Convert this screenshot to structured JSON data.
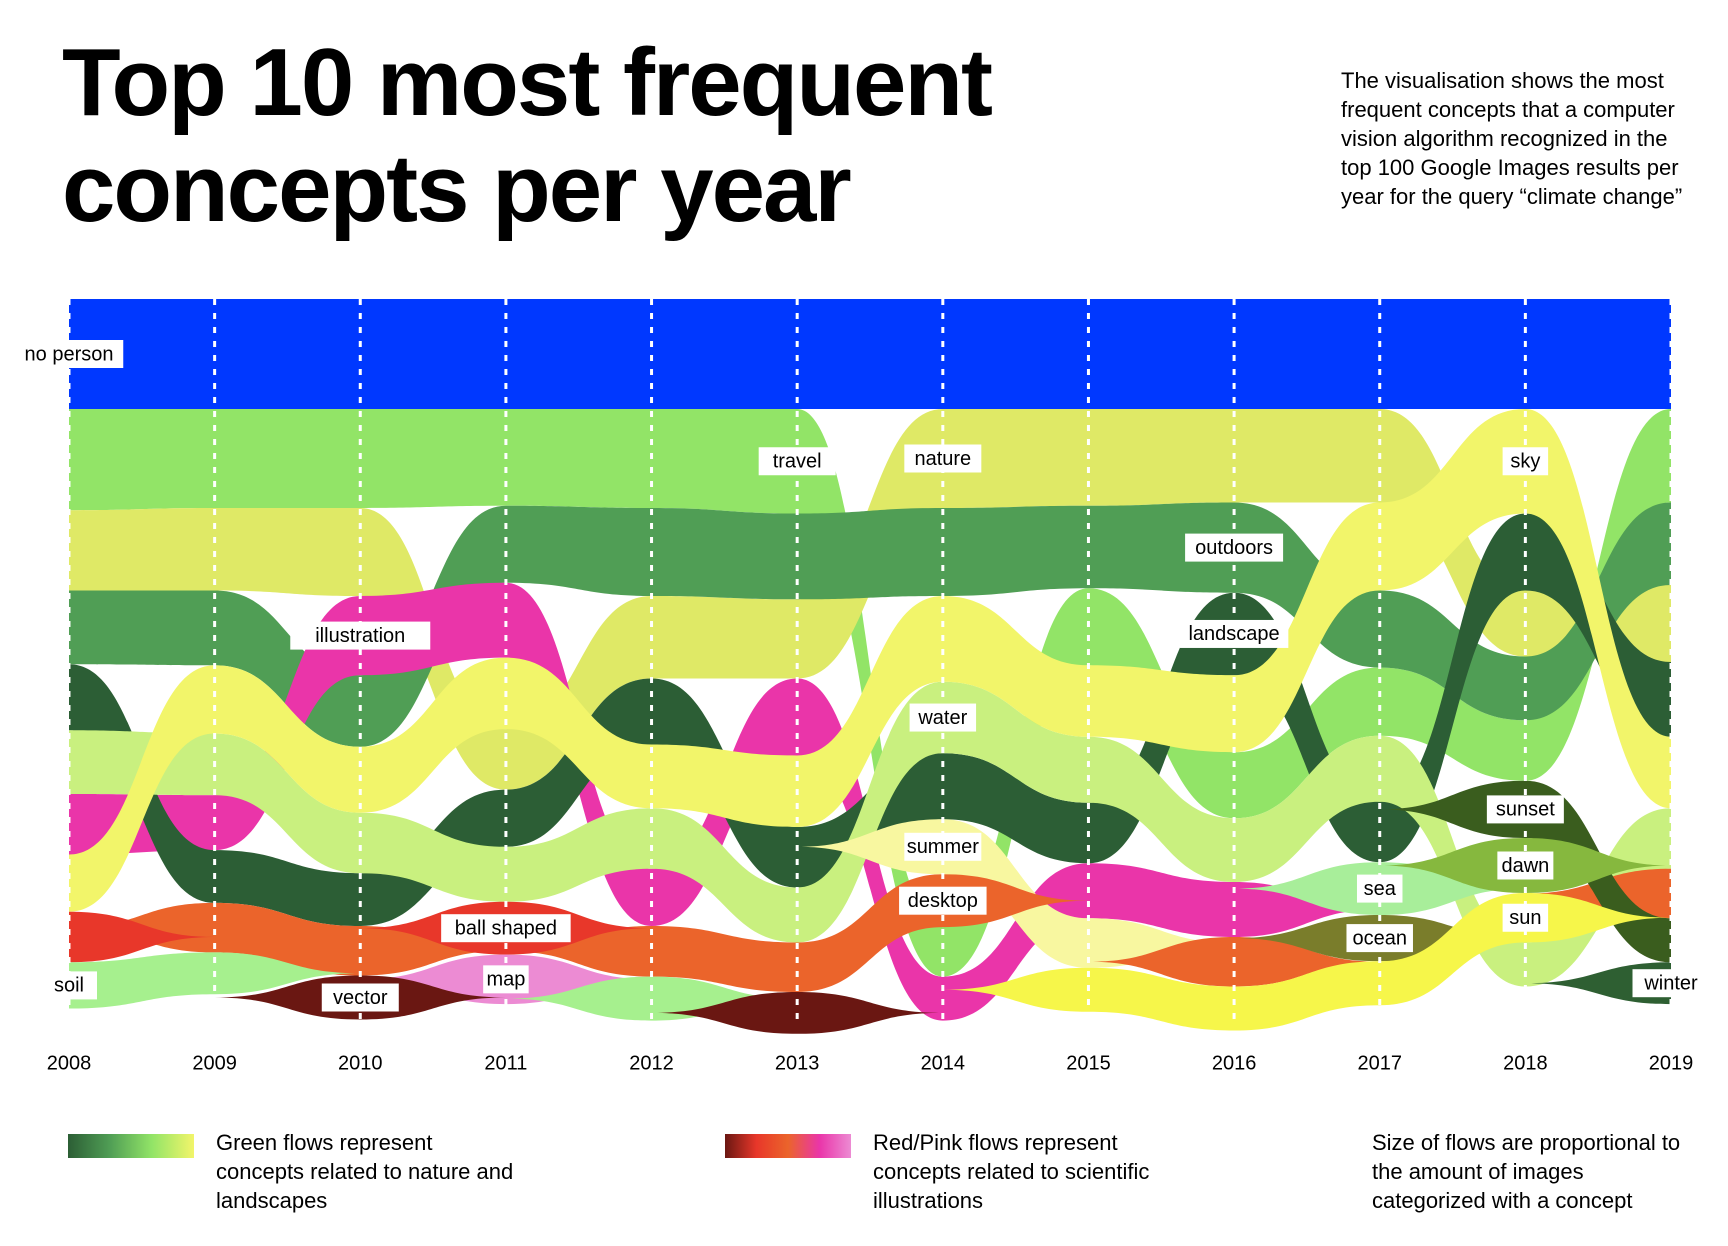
{
  "chart_data": {
    "type": "stream",
    "title": "Top 10 most frequent concepts per year",
    "subtitle": "The visualisation shows the most frequent concepts that a computer vision algorithm recognized in the top 100 Google Images results per year for the query “climate change”",
    "x": [
      2008,
      2009,
      2010,
      2011,
      2012,
      2013,
      2014,
      2015,
      2016,
      2017,
      2018,
      2019
    ],
    "series": [
      {
        "name": "no person",
        "color": "#0038ff",
        "values": [
          100,
          100,
          100,
          100,
          100,
          100,
          100,
          100,
          100,
          100,
          100,
          100
        ]
      },
      {
        "name": "travel",
        "color": "#92e467",
        "values": [
          92,
          90,
          90,
          88,
          90,
          95,
          45,
          70,
          60,
          62,
          55,
          85
        ]
      },
      {
        "name": "nature",
        "color": "#dfe966",
        "values": [
          73,
          75,
          80,
          55,
          75,
          72,
          90,
          88,
          85,
          85,
          60,
          70
        ]
      },
      {
        "name": "outdoors",
        "color": "#509e55",
        "values": [
          67,
          68,
          65,
          70,
          80,
          78,
          80,
          75,
          82,
          70,
          58,
          75
        ]
      },
      {
        "name": "illustration",
        "color": "#ea35a9",
        "values": [
          55,
          50,
          72,
          68,
          52,
          70,
          40,
          50,
          50,
          null,
          null,
          null
        ]
      },
      {
        "name": "landscape",
        "color": "#2c5e35",
        "values": [
          60,
          48,
          48,
          52,
          60,
          55,
          60,
          55,
          75,
          55,
          70,
          68
        ]
      },
      {
        "name": "water",
        "color": "#c9f07f",
        "values": [
          58,
          56,
          55,
          50,
          55,
          50,
          65,
          60,
          58,
          60,
          40,
          55
        ]
      },
      {
        "name": "sky",
        "color": "#f2f56a",
        "values": [
          52,
          62,
          60,
          65,
          58,
          65,
          78,
          65,
          70,
          80,
          95,
          65
        ]
      },
      {
        "name": "summer",
        "color": "#f8f7a0",
        "values": [
          null,
          null,
          null,
          null,
          null,
          null,
          50,
          45,
          null,
          null,
          null,
          null
        ]
      },
      {
        "name": "desktop",
        "color": "#eb642b",
        "values": [
          null,
          45,
          45,
          null,
          46,
          45,
          48,
          null,
          45,
          null,
          null,
          45
        ]
      },
      {
        "name": "ball shaped",
        "color": "#e8372a",
        "values": [
          46,
          null,
          null,
          48,
          null,
          null,
          null,
          null,
          null,
          null,
          null,
          null
        ]
      },
      {
        "name": "map",
        "color": "#ec8bd3",
        "values": [
          null,
          null,
          null,
          45,
          null,
          null,
          null,
          null,
          null,
          null,
          null,
          null
        ]
      },
      {
        "name": "soil",
        "color": "#a6f08e",
        "values": [
          42,
          38,
          null,
          null,
          40,
          null,
          null,
          null,
          null,
          null,
          null,
          null
        ]
      },
      {
        "name": "vector",
        "color": "#6a1712",
        "values": [
          null,
          null,
          40,
          null,
          null,
          38,
          null,
          null,
          null,
          null,
          null,
          null
        ]
      },
      {
        "name": "sea",
        "color": "#a8ee9a",
        "values": [
          null,
          null,
          null,
          null,
          null,
          null,
          null,
          null,
          null,
          48,
          null,
          null
        ]
      },
      {
        "name": "ocean",
        "color": "#7a7d2b",
        "values": [
          null,
          null,
          null,
          null,
          null,
          null,
          null,
          null,
          null,
          42,
          null,
          null
        ]
      },
      {
        "name": "sunset",
        "color": "#3a5d1e",
        "values": [
          null,
          null,
          null,
          null,
          null,
          null,
          null,
          null,
          null,
          null,
          52,
          40
        ]
      },
      {
        "name": "dawn",
        "color": "#86b83e",
        "values": [
          null,
          null,
          null,
          null,
          null,
          null,
          null,
          null,
          null,
          null,
          50,
          null
        ]
      },
      {
        "name": "sun",
        "color": "#f6f64a",
        "values": [
          null,
          null,
          null,
          null,
          null,
          null,
          null,
          40,
          40,
          40,
          45,
          null
        ]
      },
      {
        "name": "winter",
        "color": "#2e5f32",
        "values": [
          null,
          null,
          null,
          null,
          null,
          null,
          null,
          null,
          null,
          null,
          null,
          38
        ]
      }
    ],
    "notes": [
      "Green flows represent concepts related to nature and landscapes",
      "Red/Pink flows represent concepts related to scientific illustrations",
      "Size of flows are proportional to the amount of images categorized with a concept"
    ]
  }
}
